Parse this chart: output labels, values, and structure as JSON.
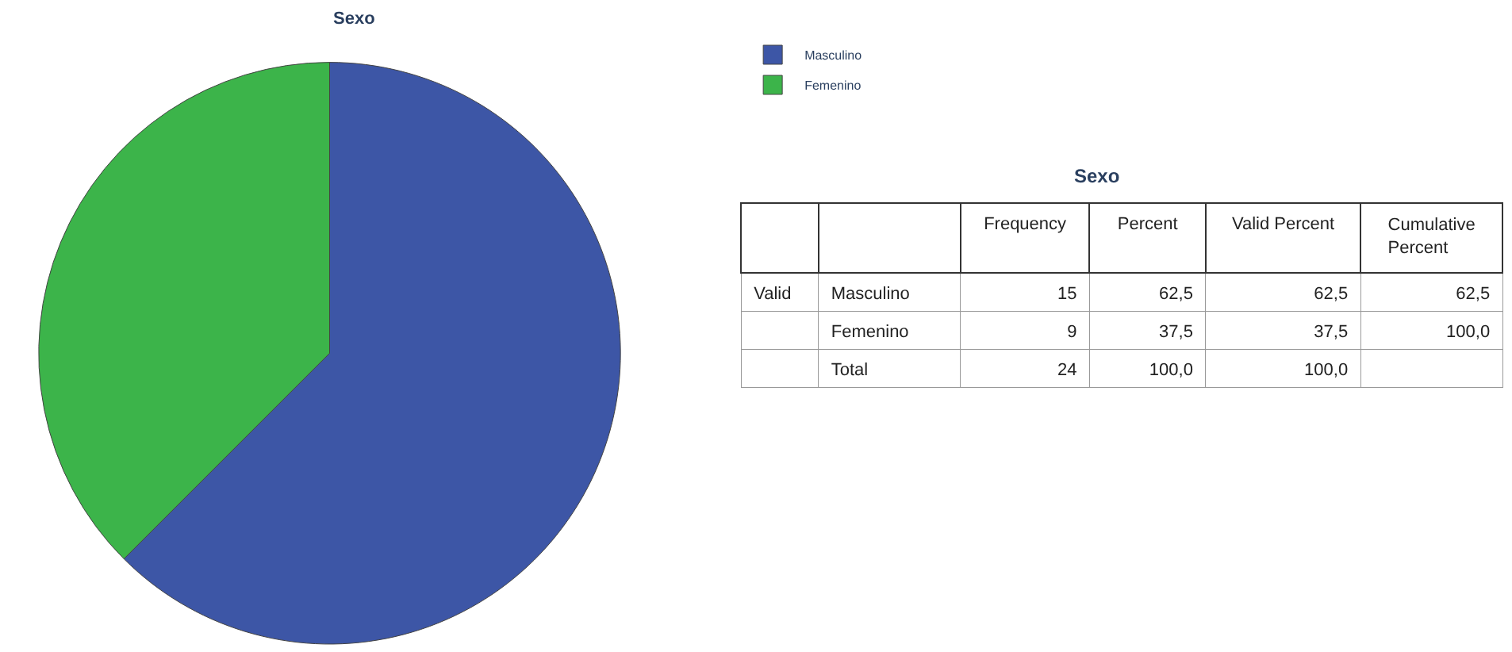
{
  "chart_data": [
    {
      "type": "pie",
      "title": "Sexo",
      "categories": [
        "Masculino",
        "Femenino"
      ],
      "values": [
        62.5,
        37.5
      ],
      "colors": [
        "#3d56a6",
        "#3cb44a"
      ],
      "legend": "top right"
    },
    {
      "type": "other",
      "title": "Sexo",
      "categories": [
        "Frequency",
        "Percent",
        "Valid Percent",
        "Cumulative Percent"
      ],
      "y_categories": [
        "Valid",
        null,
        null
      ],
      "y2_categories": [
        "Masculino",
        "Femenino",
        "Total"
      ],
      "cell_labels": [
        [
          "15",
          "62,5",
          "62,5",
          "62,5"
        ],
        [
          "9",
          "37,5",
          "37,5",
          "100,0"
        ],
        [
          "24",
          "100,0",
          "100,0",
          null
        ]
      ]
    }
  ]
}
